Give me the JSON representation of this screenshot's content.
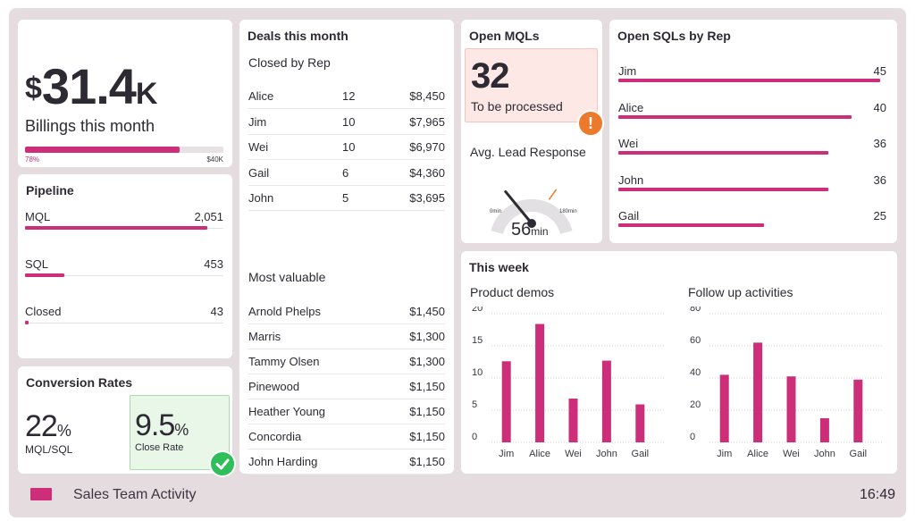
{
  "billings": {
    "currency": "$",
    "amount": "31.4",
    "suffix": "K",
    "label": "Billings this month",
    "progress_pct_label": "78%",
    "progress": 0.78,
    "target_label": "$40K"
  },
  "pipeline": {
    "title": "Pipeline",
    "items": [
      {
        "label": "MQL",
        "value": "2,051",
        "fraction": 0.92
      },
      {
        "label": "SQL",
        "value": "453",
        "fraction": 0.2
      },
      {
        "label": "Closed",
        "value": "43",
        "fraction": 0.02
      }
    ]
  },
  "conversion": {
    "title": "Conversion Rates",
    "mql_value": "22",
    "mql_unit": "%",
    "mql_label": "MQL/SQL",
    "close_value": "9.5",
    "close_unit": "%",
    "close_label": "Close Rate"
  },
  "deals": {
    "title": "Deals this month",
    "closed_title": "Closed by Rep",
    "closed": [
      {
        "name": "Alice",
        "count": "12",
        "amount": "$8,450"
      },
      {
        "name": "Jim",
        "count": "10",
        "amount": "$7,965"
      },
      {
        "name": "Wei",
        "count": "10",
        "amount": "$6,970"
      },
      {
        "name": "Gail",
        "count": "6",
        "amount": "$4,360"
      },
      {
        "name": "John",
        "count": "5",
        "amount": "$3,695"
      }
    ],
    "valuable_title": "Most valuable",
    "valuable": [
      {
        "name": "Arnold Phelps",
        "amount": "$1,450"
      },
      {
        "name": "Marris",
        "amount": "$1,300"
      },
      {
        "name": "Tammy Olsen",
        "amount": "$1,300"
      },
      {
        "name": "Pinewood",
        "amount": "$1,150"
      },
      {
        "name": "Heather Young",
        "amount": "$1,150"
      },
      {
        "name": "Concordia",
        "amount": "$1,150"
      },
      {
        "name": "John Harding",
        "amount": "$1,150"
      }
    ]
  },
  "mqls": {
    "title": "Open MQLs",
    "value": "32",
    "label": "To be processed",
    "alert_icon": "!",
    "response_title": "Avg. Lead Response",
    "gauge_min": "0min",
    "gauge_max": "180min",
    "gauge_value": "56",
    "gauge_unit": "min",
    "gauge_reading": 56,
    "gauge_max_value": 180
  },
  "sqls": {
    "title": "Open SQLs by Rep",
    "items": [
      {
        "name": "Jim",
        "value": "45"
      },
      {
        "name": "Alice",
        "value": "40"
      },
      {
        "name": "Wei",
        "value": "36"
      },
      {
        "name": "John",
        "value": "36"
      },
      {
        "name": "Gail",
        "value": "25"
      }
    ]
  },
  "week": {
    "title": "This week"
  },
  "chart_data": [
    {
      "type": "bar",
      "title": "Product demos",
      "categories": [
        "Jim",
        "Alice",
        "Wei",
        "John",
        "Gail"
      ],
      "values": [
        12.6,
        18.4,
        6.8,
        12.7,
        5.9
      ],
      "yticks": [
        "0",
        "5",
        "10",
        "15",
        "20"
      ],
      "ylim": [
        0,
        20
      ],
      "grid": true
    },
    {
      "type": "bar",
      "title": "Follow up activities",
      "categories": [
        "Jim",
        "Alice",
        "Wei",
        "John",
        "Gail"
      ],
      "values": [
        42,
        62,
        41,
        15,
        39
      ],
      "yticks": [
        "0",
        "20",
        "40",
        "60",
        "80"
      ],
      "ylim": [
        0,
        80
      ],
      "grid": true
    }
  ],
  "footer": {
    "title": "Sales Team Activity",
    "time": "16:49"
  },
  "colors": {
    "accent": "#cc2e7a",
    "alert": "#ec7a2c",
    "success": "#2fbf5a",
    "frame": "#e4dcdf"
  }
}
